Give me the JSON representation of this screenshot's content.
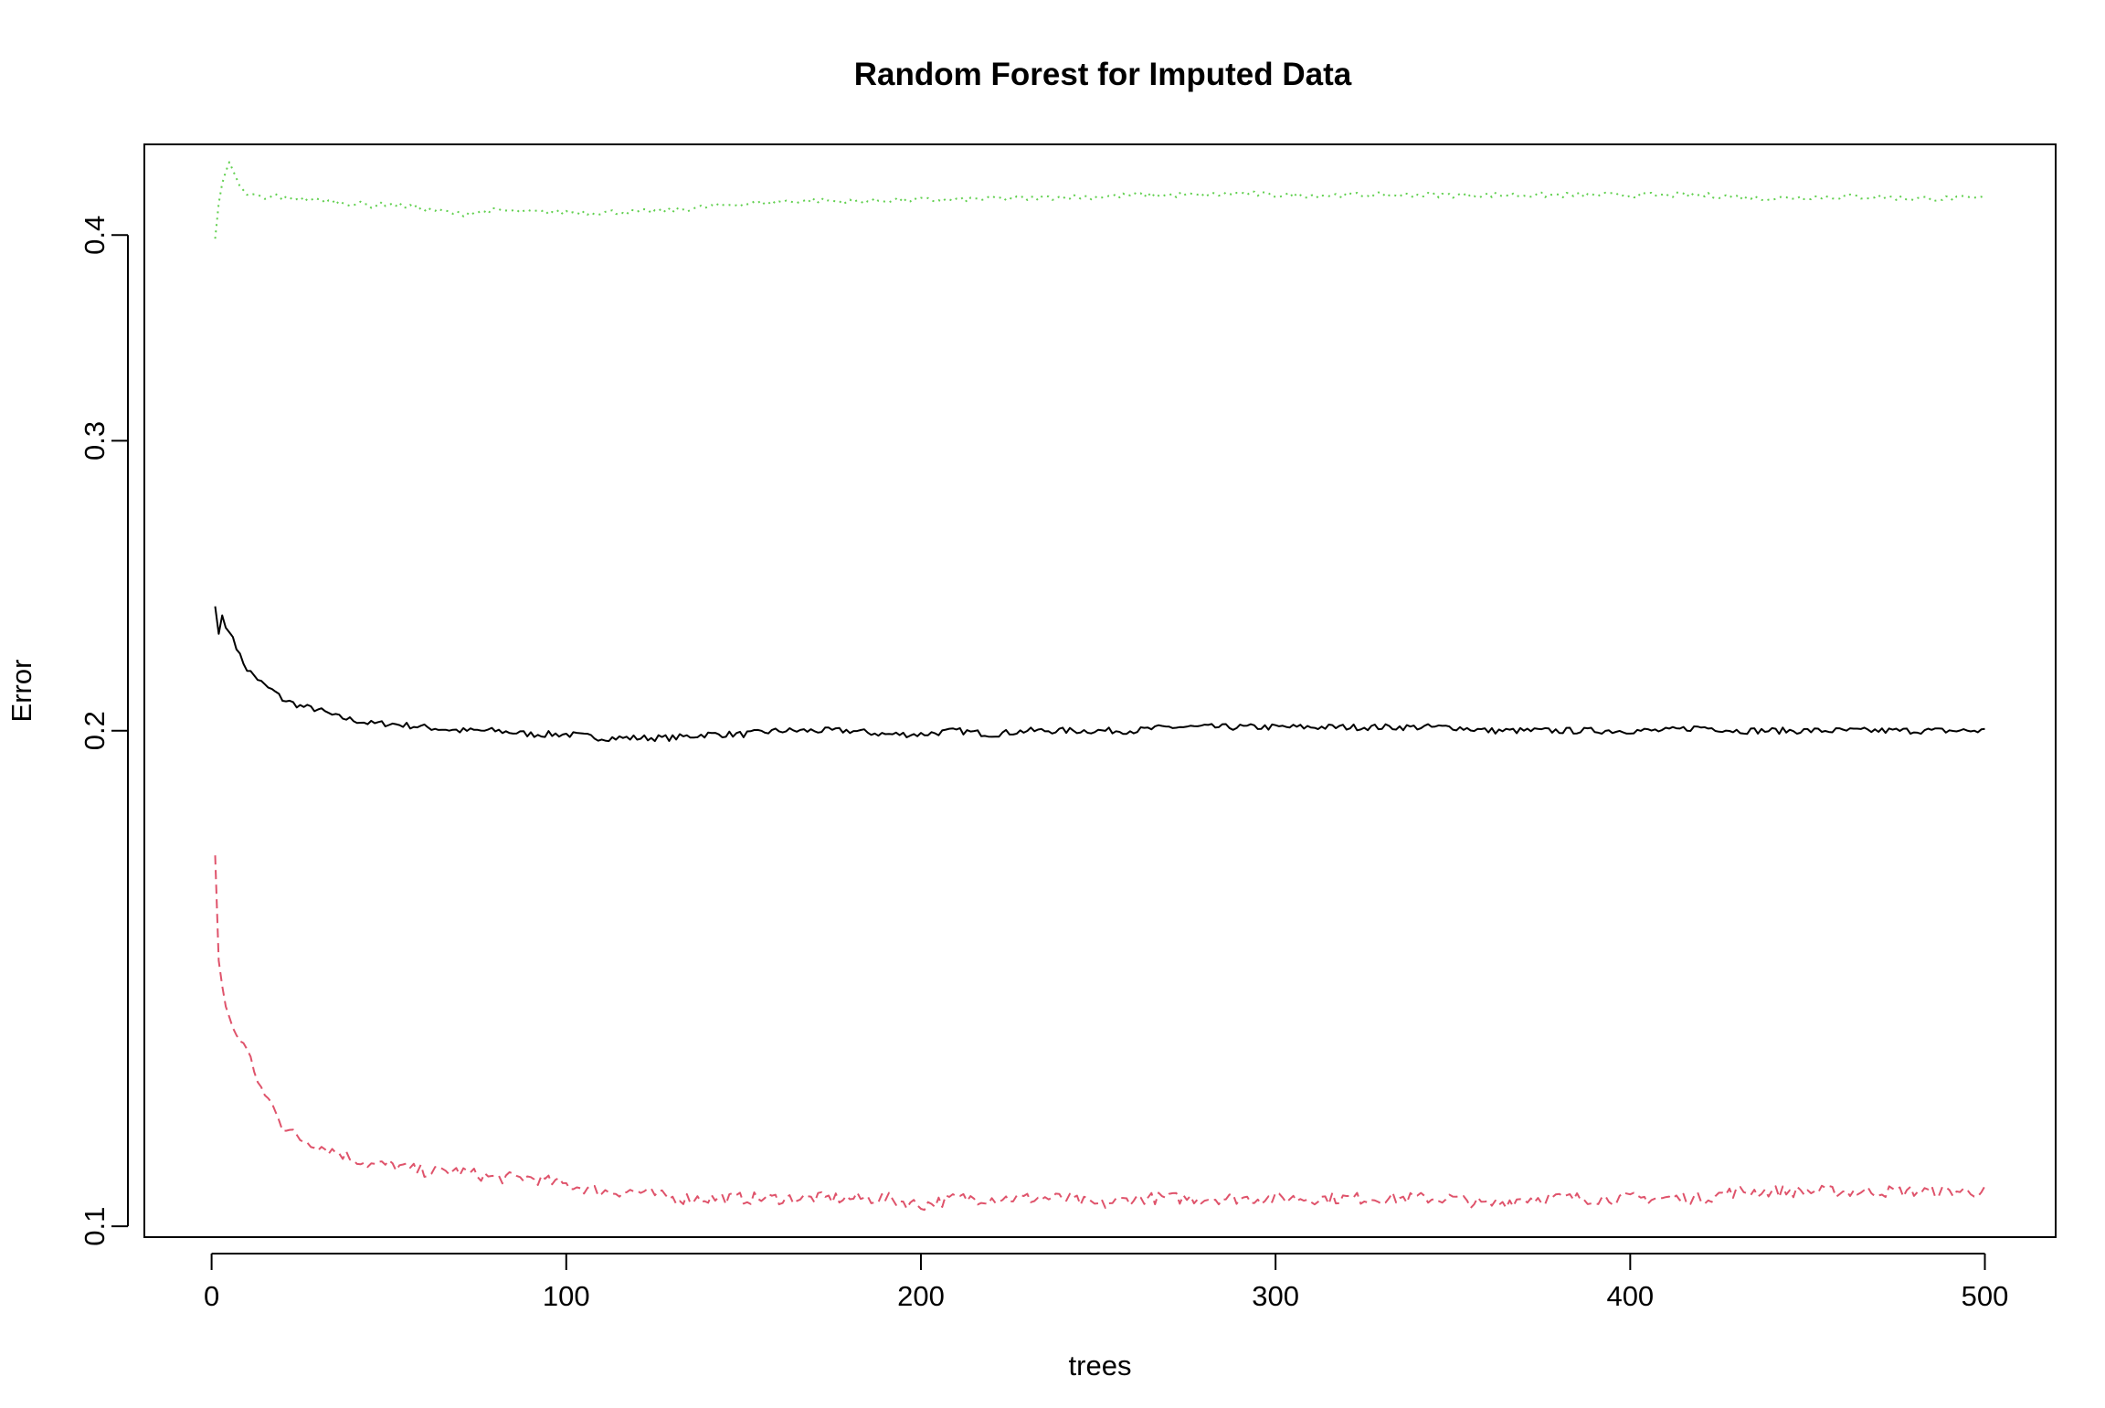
{
  "chart_data": {
    "type": "line",
    "title": "Random Forest for Imputed Data",
    "xlabel": "trees",
    "ylabel": "Error",
    "xlim": [
      1,
      500
    ],
    "ylim": [
      0.0985,
      0.4541
    ],
    "y_scale": "log",
    "x_ticks": [
      "0",
      "100",
      "200",
      "300",
      "400",
      "500"
    ],
    "y_ticks": [
      "0.1",
      "0.2",
      "0.3",
      "0.4"
    ],
    "grid": false,
    "legend": "none",
    "series": [
      {
        "color": "#000000",
        "style": "solid",
        "points": [
          [
            1,
            0.238
          ],
          [
            2,
            0.229
          ],
          [
            3,
            0.235
          ],
          [
            4,
            0.231
          ],
          [
            6,
            0.228
          ],
          [
            8,
            0.222
          ],
          [
            10,
            0.218
          ],
          [
            12,
            0.216
          ],
          [
            15,
            0.213
          ],
          [
            18,
            0.211
          ],
          [
            20,
            0.209
          ],
          [
            25,
            0.207
          ],
          [
            30,
            0.206
          ],
          [
            35,
            0.204
          ],
          [
            40,
            0.203
          ],
          [
            45,
            0.202
          ],
          [
            50,
            0.202
          ],
          [
            60,
            0.201
          ],
          [
            70,
            0.2
          ],
          [
            80,
            0.2
          ],
          [
            90,
            0.199
          ],
          [
            100,
            0.199
          ],
          [
            110,
            0.198
          ],
          [
            120,
            0.198
          ],
          [
            130,
            0.198
          ],
          [
            140,
            0.199
          ],
          [
            150,
            0.199
          ],
          [
            160,
            0.2
          ],
          [
            170,
            0.2
          ],
          [
            180,
            0.2
          ],
          [
            190,
            0.199
          ],
          [
            200,
            0.199
          ],
          [
            210,
            0.2
          ],
          [
            220,
            0.199
          ],
          [
            230,
            0.2
          ],
          [
            240,
            0.2
          ],
          [
            250,
            0.2
          ],
          [
            260,
            0.2
          ],
          [
            270,
            0.201
          ],
          [
            280,
            0.201
          ],
          [
            290,
            0.201
          ],
          [
            300,
            0.201
          ],
          [
            310,
            0.201
          ],
          [
            320,
            0.201
          ],
          [
            330,
            0.201
          ],
          [
            340,
            0.201
          ],
          [
            350,
            0.201
          ],
          [
            360,
            0.2
          ],
          [
            370,
            0.2
          ],
          [
            380,
            0.2
          ],
          [
            390,
            0.2
          ],
          [
            400,
            0.2
          ],
          [
            410,
            0.2
          ],
          [
            420,
            0.201
          ],
          [
            430,
            0.2
          ],
          [
            440,
            0.2
          ],
          [
            450,
            0.2
          ],
          [
            460,
            0.2
          ],
          [
            470,
            0.2
          ],
          [
            480,
            0.2
          ],
          [
            490,
            0.2
          ],
          [
            500,
            0.2
          ]
        ]
      },
      {
        "color": "#df536b",
        "style": "dashed",
        "points": [
          [
            1,
            0.168
          ],
          [
            2,
            0.145
          ],
          [
            3,
            0.14
          ],
          [
            4,
            0.136
          ],
          [
            6,
            0.132
          ],
          [
            8,
            0.13
          ],
          [
            10,
            0.128
          ],
          [
            12,
            0.124
          ],
          [
            15,
            0.12
          ],
          [
            18,
            0.118
          ],
          [
            20,
            0.115
          ],
          [
            25,
            0.113
          ],
          [
            30,
            0.112
          ],
          [
            35,
            0.111
          ],
          [
            40,
            0.11
          ],
          [
            45,
            0.109
          ],
          [
            50,
            0.109
          ],
          [
            60,
            0.108
          ],
          [
            70,
            0.108
          ],
          [
            80,
            0.107
          ],
          [
            90,
            0.107
          ],
          [
            100,
            0.106
          ],
          [
            110,
            0.105
          ],
          [
            120,
            0.105
          ],
          [
            130,
            0.104
          ],
          [
            140,
            0.104
          ],
          [
            150,
            0.104
          ],
          [
            160,
            0.104
          ],
          [
            170,
            0.104
          ],
          [
            180,
            0.104
          ],
          [
            190,
            0.104
          ],
          [
            200,
            0.103
          ],
          [
            210,
            0.104
          ],
          [
            220,
            0.104
          ],
          [
            230,
            0.104
          ],
          [
            240,
            0.104
          ],
          [
            250,
            0.103
          ],
          [
            260,
            0.104
          ],
          [
            270,
            0.104
          ],
          [
            280,
            0.104
          ],
          [
            290,
            0.104
          ],
          [
            300,
            0.104
          ],
          [
            310,
            0.104
          ],
          [
            320,
            0.104
          ],
          [
            330,
            0.104
          ],
          [
            340,
            0.104
          ],
          [
            350,
            0.104
          ],
          [
            360,
            0.103
          ],
          [
            370,
            0.104
          ],
          [
            380,
            0.104
          ],
          [
            390,
            0.104
          ],
          [
            400,
            0.104
          ],
          [
            410,
            0.104
          ],
          [
            420,
            0.104
          ],
          [
            430,
            0.105
          ],
          [
            440,
            0.105
          ],
          [
            450,
            0.105
          ],
          [
            460,
            0.105
          ],
          [
            470,
            0.105
          ],
          [
            480,
            0.105
          ],
          [
            490,
            0.105
          ],
          [
            500,
            0.105
          ]
        ]
      },
      {
        "color": "#61d04f",
        "style": "dotted",
        "points": [
          [
            1,
            0.398
          ],
          [
            2,
            0.418
          ],
          [
            3,
            0.43
          ],
          [
            4,
            0.437
          ],
          [
            5,
            0.443
          ],
          [
            6,
            0.438
          ],
          [
            8,
            0.427
          ],
          [
            10,
            0.422
          ],
          [
            12,
            0.424
          ],
          [
            15,
            0.42
          ],
          [
            18,
            0.423
          ],
          [
            20,
            0.421
          ],
          [
            25,
            0.421
          ],
          [
            30,
            0.42
          ],
          [
            35,
            0.419
          ],
          [
            40,
            0.418
          ],
          [
            45,
            0.417
          ],
          [
            50,
            0.418
          ],
          [
            60,
            0.415
          ],
          [
            70,
            0.412
          ],
          [
            80,
            0.414
          ],
          [
            90,
            0.413
          ],
          [
            100,
            0.413
          ],
          [
            110,
            0.413
          ],
          [
            120,
            0.413
          ],
          [
            130,
            0.414
          ],
          [
            140,
            0.416
          ],
          [
            150,
            0.418
          ],
          [
            160,
            0.419
          ],
          [
            170,
            0.42
          ],
          [
            180,
            0.419
          ],
          [
            190,
            0.42
          ],
          [
            200,
            0.42
          ],
          [
            210,
            0.42
          ],
          [
            220,
            0.421
          ],
          [
            230,
            0.421
          ],
          [
            240,
            0.422
          ],
          [
            250,
            0.422
          ],
          [
            260,
            0.423
          ],
          [
            270,
            0.423
          ],
          [
            280,
            0.423
          ],
          [
            290,
            0.424
          ],
          [
            300,
            0.423
          ],
          [
            310,
            0.423
          ],
          [
            320,
            0.423
          ],
          [
            330,
            0.423
          ],
          [
            340,
            0.423
          ],
          [
            350,
            0.423
          ],
          [
            360,
            0.423
          ],
          [
            370,
            0.423
          ],
          [
            380,
            0.423
          ],
          [
            390,
            0.423
          ],
          [
            400,
            0.423
          ],
          [
            410,
            0.423
          ],
          [
            420,
            0.423
          ],
          [
            430,
            0.422
          ],
          [
            440,
            0.421
          ],
          [
            450,
            0.422
          ],
          [
            460,
            0.422
          ],
          [
            470,
            0.422
          ],
          [
            480,
            0.421
          ],
          [
            490,
            0.421
          ],
          [
            500,
            0.421
          ]
        ]
      }
    ]
  }
}
